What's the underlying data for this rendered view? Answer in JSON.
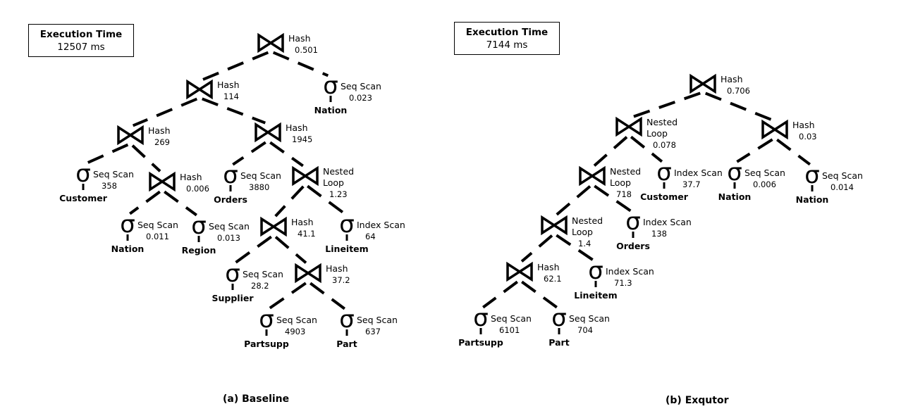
{
  "panels": [
    {
      "id": "baseline",
      "caption": "(a)  Baseline",
      "exec_title": "Execution Time",
      "exec_value": "12507  ms",
      "nodes": [
        {
          "id": "b1",
          "kind": "join",
          "op": [
            "Hash"
          ],
          "cost": "0.501"
        },
        {
          "id": "b2",
          "kind": "join",
          "op": [
            "Hash"
          ],
          "cost": "114"
        },
        {
          "id": "b3",
          "kind": "scan",
          "op": [
            "Seq Scan"
          ],
          "cost": "0.023",
          "table": "Nation"
        },
        {
          "id": "b4",
          "kind": "join",
          "op": [
            "Hash"
          ],
          "cost": "269"
        },
        {
          "id": "b5",
          "kind": "join",
          "op": [
            "Hash"
          ],
          "cost": "1945"
        },
        {
          "id": "b6",
          "kind": "scan",
          "op": [
            "Seq Scan"
          ],
          "cost": "358",
          "table": "Customer"
        },
        {
          "id": "b7",
          "kind": "join",
          "op": [
            "Hash"
          ],
          "cost": "0.006"
        },
        {
          "id": "b8",
          "kind": "scan",
          "op": [
            "Seq Scan"
          ],
          "cost": "3880",
          "table": "Orders"
        },
        {
          "id": "b9",
          "kind": "join",
          "op": [
            "Nested",
            "Loop"
          ],
          "cost": "1.23"
        },
        {
          "id": "b10",
          "kind": "scan",
          "op": [
            "Seq Scan"
          ],
          "cost": "0.011",
          "table": "Nation"
        },
        {
          "id": "b11",
          "kind": "scan",
          "op": [
            "Seq Scan"
          ],
          "cost": "0.013",
          "table": "Region"
        },
        {
          "id": "b12",
          "kind": "join",
          "op": [
            "Hash"
          ],
          "cost": "41.1"
        },
        {
          "id": "b13",
          "kind": "scan",
          "op": [
            "Index Scan"
          ],
          "cost": "64",
          "table": "Lineitem"
        },
        {
          "id": "b14",
          "kind": "scan",
          "op": [
            "Seq Scan"
          ],
          "cost": "28.2",
          "table": "Supplier"
        },
        {
          "id": "b15",
          "kind": "join",
          "op": [
            "Hash"
          ],
          "cost": "37.2"
        },
        {
          "id": "b16",
          "kind": "scan",
          "op": [
            "Seq Scan"
          ],
          "cost": "4903",
          "table": "Partsupp"
        },
        {
          "id": "b17",
          "kind": "scan",
          "op": [
            "Seq Scan"
          ],
          "cost": "637",
          "table": "Part"
        }
      ],
      "edges": [
        [
          "b1",
          "b2"
        ],
        [
          "b1",
          "b3"
        ],
        [
          "b2",
          "b4"
        ],
        [
          "b2",
          "b5"
        ],
        [
          "b4",
          "b6"
        ],
        [
          "b4",
          "b7"
        ],
        [
          "b5",
          "b8"
        ],
        [
          "b5",
          "b9"
        ],
        [
          "b7",
          "b10"
        ],
        [
          "b7",
          "b11"
        ],
        [
          "b9",
          "b12"
        ],
        [
          "b9",
          "b13"
        ],
        [
          "b12",
          "b14"
        ],
        [
          "b12",
          "b15"
        ],
        [
          "b15",
          "b16"
        ],
        [
          "b15",
          "b17"
        ]
      ]
    },
    {
      "id": "exqutor",
      "caption": "(b)  Exqutor",
      "exec_title": "Execution Time",
      "exec_value": "7144  ms",
      "nodes": [
        {
          "id": "e1",
          "kind": "join",
          "op": [
            "Hash"
          ],
          "cost": "0.706"
        },
        {
          "id": "e2",
          "kind": "join",
          "op": [
            "Nested",
            "Loop"
          ],
          "cost": "0.078"
        },
        {
          "id": "e3",
          "kind": "join",
          "op": [
            "Hash"
          ],
          "cost": "0.03"
        },
        {
          "id": "e4",
          "kind": "join",
          "op": [
            "Nested",
            "Loop"
          ],
          "cost": "718"
        },
        {
          "id": "e5",
          "kind": "scan",
          "op": [
            "Index Scan"
          ],
          "cost": "37.7",
          "table": "Customer"
        },
        {
          "id": "e6",
          "kind": "scan",
          "op": [
            "Seq Scan"
          ],
          "cost": "0.006",
          "table": "Nation"
        },
        {
          "id": "e7",
          "kind": "scan",
          "op": [
            "Seq Scan"
          ],
          "cost": "0.014",
          "table": "Nation"
        },
        {
          "id": "e8",
          "kind": "join",
          "op": [
            "Nested",
            "Loop"
          ],
          "cost": "1.4"
        },
        {
          "id": "e9",
          "kind": "scan",
          "op": [
            "Index Scan"
          ],
          "cost": "138",
          "table": "Orders"
        },
        {
          "id": "e10",
          "kind": "join",
          "op": [
            "Hash"
          ],
          "cost": "62.1"
        },
        {
          "id": "e11",
          "kind": "scan",
          "op": [
            "Index Scan"
          ],
          "cost": "71.3",
          "table": "Lineitem"
        },
        {
          "id": "e12",
          "kind": "scan",
          "op": [
            "Seq Scan"
          ],
          "cost": "6101",
          "table": "Partsupp"
        },
        {
          "id": "e13",
          "kind": "scan",
          "op": [
            "Seq Scan"
          ],
          "cost": "704",
          "table": "Part"
        }
      ],
      "edges": [
        [
          "e1",
          "e2"
        ],
        [
          "e1",
          "e3"
        ],
        [
          "e2",
          "e4"
        ],
        [
          "e2",
          "e5"
        ],
        [
          "e3",
          "e6"
        ],
        [
          "e3",
          "e7"
        ],
        [
          "e4",
          "e8"
        ],
        [
          "e4",
          "e9"
        ],
        [
          "e8",
          "e10"
        ],
        [
          "e8",
          "e11"
        ],
        [
          "e10",
          "e12"
        ],
        [
          "e10",
          "e13"
        ]
      ]
    }
  ]
}
